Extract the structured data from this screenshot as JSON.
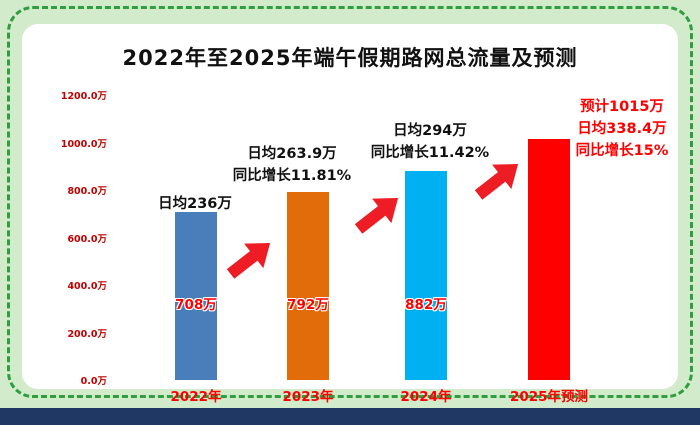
{
  "chart_data": {
    "type": "bar",
    "title": "2022年至2025年端午假期路网总流量及预测",
    "unit": "万",
    "ylim": [
      0,
      1200
    ],
    "grid": false,
    "yticks": [
      "0.0万",
      "200.0万",
      "400.0万",
      "600.0万",
      "800.0万",
      "1000.0万",
      "1200.0万"
    ],
    "categories": [
      "2022年",
      "2023年",
      "2024年",
      "2025年预测"
    ],
    "values": [
      708,
      792,
      882,
      1015
    ],
    "bars": [
      {
        "category": "2022年",
        "value": 708,
        "value_label": "708万",
        "color": "#4a7ebb",
        "annotation_color": "#111111",
        "annotation_lines": [
          "日均236万"
        ]
      },
      {
        "category": "2023年",
        "value": 792,
        "value_label": "792万",
        "color": "#e36c0a",
        "annotation_color": "#111111",
        "annotation_lines": [
          "日均263.9万",
          "同比增长11.81%"
        ]
      },
      {
        "category": "2024年",
        "value": 882,
        "value_label": "882万",
        "color": "#00b0f0",
        "annotation_color": "#111111",
        "annotation_lines": [
          "日均294万",
          "同比增长11.42%"
        ]
      },
      {
        "category": "2025年预测",
        "value": 1015,
        "color": "#fe0000",
        "annotation_color": "#fe0000",
        "annotation_lines": [
          "预计1015万",
          "日均338.4万",
          "同比增长15%"
        ]
      }
    ],
    "colors": {
      "background": "#d2ebca",
      "border": "#2f9e3f",
      "card": "#ffffff",
      "title": "#111111",
      "axis_tick_label": "#c00000",
      "category_label": "#fe0000",
      "value_label": "#fe0000",
      "arrow": "#ee1c25",
      "footer_strip": "#203864"
    }
  }
}
